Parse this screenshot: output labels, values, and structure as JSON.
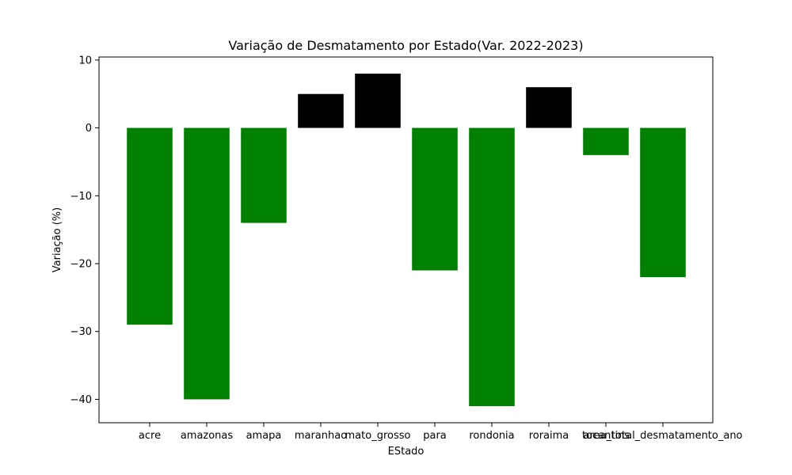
{
  "chart_data": {
    "type": "bar",
    "title": "Variação de Desmatamento por Estado(Var. 2022-2023)",
    "xlabel": "EStado",
    "ylabel": "Variação (%)",
    "categories": [
      "acre",
      "amazonas",
      "amapa",
      "maranhao",
      "mato_grosso",
      "para",
      "rondonia",
      "roraima",
      "tocantins",
      "area_total_desmatamento_ano"
    ],
    "values": [
      -29,
      -40,
      -14,
      5,
      8,
      -21,
      -41,
      6,
      -4,
      -22
    ],
    "ylim": [
      -43.45,
      10.45
    ],
    "yticks": [
      -40,
      -30,
      -20,
      -10,
      0,
      10
    ],
    "ytick_labels": [
      "−40",
      "−30",
      "−20",
      "−10",
      "0",
      "10"
    ],
    "grid": false,
    "legend": "none",
    "colors": {
      "negative": "#008000",
      "positive": "#000000"
    }
  }
}
